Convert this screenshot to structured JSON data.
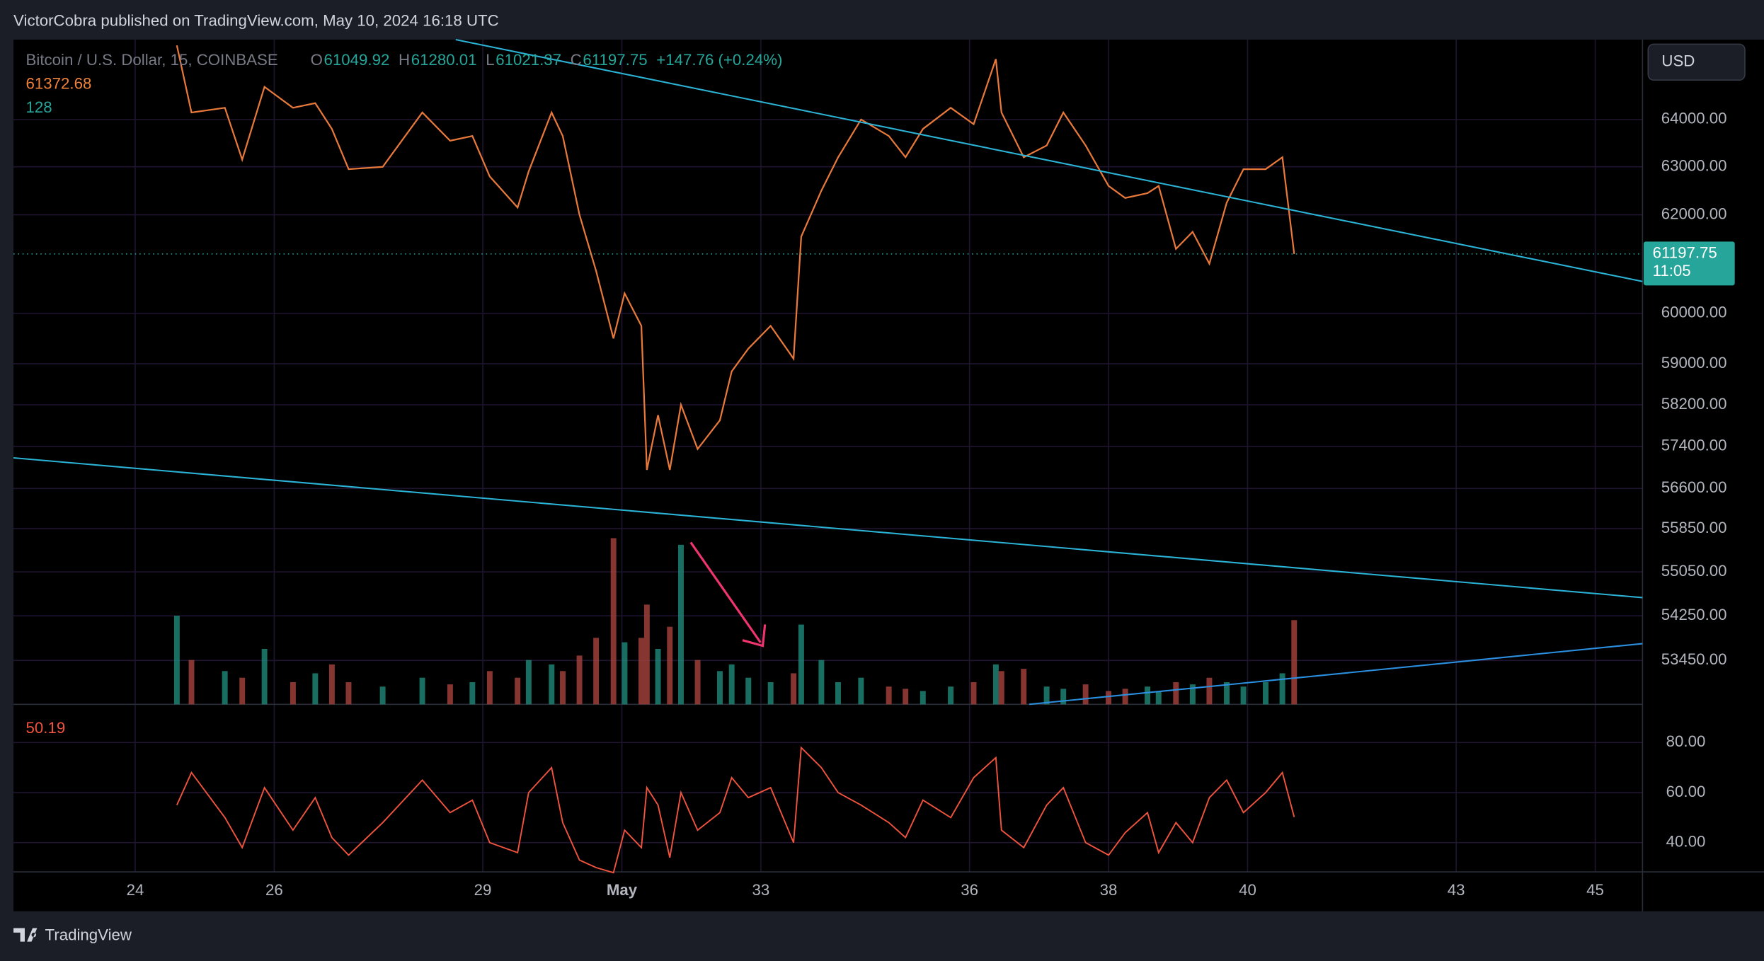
{
  "header": {
    "publisher": "VictorCobra published on TradingView.com, May 10, 2024 16:18 UTC",
    "currency_button": "USD",
    "footer_logo": "TradingView"
  },
  "chart_data": {
    "type": "line",
    "title": "Bitcoin / U.S. Dollar, 15, COINBASE",
    "ohlc": [
      {
        "label": "O",
        "value": 61049.92
      },
      {
        "label": "H",
        "value": 61280.01
      },
      {
        "label": "L",
        "value": 61021.37
      },
      {
        "label": "C",
        "value": 61197.75
      }
    ],
    "change_label": "+147.76 (+0.24%)",
    "ma_value": 61372.68,
    "volume_value": 128,
    "rsi_value": 50.19,
    "countdown": "11:05",
    "x": [
      24.6,
      24.81,
      25.29,
      25.54,
      25.86,
      26.27,
      26.59,
      26.83,
      27.07,
      27.56,
      28.13,
      28.53,
      28.85,
      29.1,
      29.5,
      29.66,
      29.99,
      30.15,
      30.39,
      30.63,
      30.88,
      31.04,
      31.28,
      31.36,
      31.52,
      31.69,
      31.85,
      32.09,
      32.41,
      32.58,
      32.82,
      33.14,
      33.47,
      33.58,
      33.87,
      34.11,
      34.44,
      34.84,
      35.08,
      35.33,
      35.73,
      36.06,
      36.38,
      36.46,
      36.78,
      37.11,
      37.35,
      37.67,
      38.0,
      38.24,
      38.56,
      38.72,
      38.97,
      39.21,
      39.45,
      39.7,
      39.94,
      40.26,
      40.5,
      40.67
    ],
    "price": {
      "color": "#e8793a",
      "values": [
        65600,
        64150,
        64250,
        63150,
        64700,
        64250,
        64350,
        63800,
        62950,
        63000,
        64150,
        63550,
        63650,
        62800,
        62150,
        62900,
        64150,
        63650,
        62000,
        60850,
        59500,
        60400,
        59750,
        56950,
        58000,
        56950,
        58200,
        57350,
        57900,
        58850,
        59300,
        59750,
        59100,
        61550,
        62500,
        63200,
        64000,
        63650,
        63200,
        63800,
        64250,
        63900,
        65300,
        64150,
        63200,
        63450,
        64150,
        63450,
        62600,
        62350,
        62450,
        62600,
        61300,
        61650,
        61000,
        62250,
        62950,
        62950,
        63200,
        61197.75
      ]
    },
    "volume": {
      "up_color": "#1f8a7a",
      "down_color": "#a8423c",
      "values": [
        40,
        20,
        15,
        12,
        25,
        10,
        14,
        18,
        10,
        8,
        12,
        9,
        10,
        15,
        12,
        20,
        18,
        15,
        22,
        30,
        75,
        28,
        30,
        45,
        25,
        35,
        72,
        20,
        15,
        18,
        12,
        10,
        14,
        36,
        20,
        10,
        12,
        8,
        7,
        6,
        8,
        10,
        18,
        15,
        16,
        8,
        7,
        9,
        6,
        7,
        8,
        6,
        10,
        9,
        12,
        10,
        8,
        10,
        14,
        38
      ]
    },
    "rsi": {
      "color": "#f0533e",
      "values": [
        55,
        68,
        50,
        38,
        62,
        45,
        58,
        42,
        35,
        48,
        65,
        52,
        57,
        40,
        36,
        60,
        70,
        48,
        33,
        30,
        28,
        45,
        38,
        62,
        55,
        34,
        60,
        45,
        52,
        66,
        58,
        62,
        40,
        78,
        70,
        60,
        55,
        48,
        42,
        57,
        50,
        66,
        74,
        45,
        38,
        55,
        62,
        40,
        35,
        44,
        52,
        36,
        48,
        40,
        58,
        65,
        52,
        60,
        68,
        50.19
      ]
    },
    "trendlines": [
      {
        "color": "#2bb3d6",
        "x": [
          28.61,
          45.68
        ],
        "y": [
          65725,
          60640
        ]
      },
      {
        "color": "#2bb3d6",
        "x": [
          22.25,
          45.68
        ],
        "y": [
          57180,
          54580
        ]
      },
      {
        "color": "#2b8fe0",
        "x": [
          36.86,
          45.68
        ],
        "y": [
          52675,
          53750
        ]
      }
    ],
    "xlim": [
      22.25,
      45.68
    ],
    "xticks": [
      24,
      26,
      29,
      {
        "value": 31,
        "label": "May"
      },
      33,
      36,
      38,
      40,
      43,
      45
    ],
    "xtick_labels_override": null,
    "ylim": [
      52675,
      65725
    ],
    "log": true,
    "yticks": [
      {
        "value": 64000,
        "label": "64000.00"
      },
      {
        "value": 63000,
        "label": "63000.00"
      },
      {
        "value": 62000,
        "label": "62000.00"
      },
      {
        "value": 60000,
        "label": "60000.00"
      },
      {
        "value": 59000,
        "label": "59000.00"
      },
      {
        "value": 58200,
        "label": "58200.00"
      },
      {
        "value": 57400,
        "label": "57400.00"
      },
      {
        "value": 56600,
        "label": "56600.00"
      },
      {
        "value": 55850,
        "label": "55850.00"
      },
      {
        "value": 55050,
        "label": "55050.00"
      },
      {
        "value": 54250,
        "label": "54250.00"
      },
      {
        "value": 53450,
        "label": "53450.00"
      }
    ],
    "volume_lim": [
      0,
      300
    ],
    "rsi_lim": [
      28.3,
      95.3
    ],
    "rsi_ticks": [
      {
        "value": 80,
        "label": "80.00"
      },
      {
        "value": 60,
        "label": "60.00"
      },
      {
        "value": 40,
        "label": "40.00"
      }
    ],
    "grid": true
  }
}
